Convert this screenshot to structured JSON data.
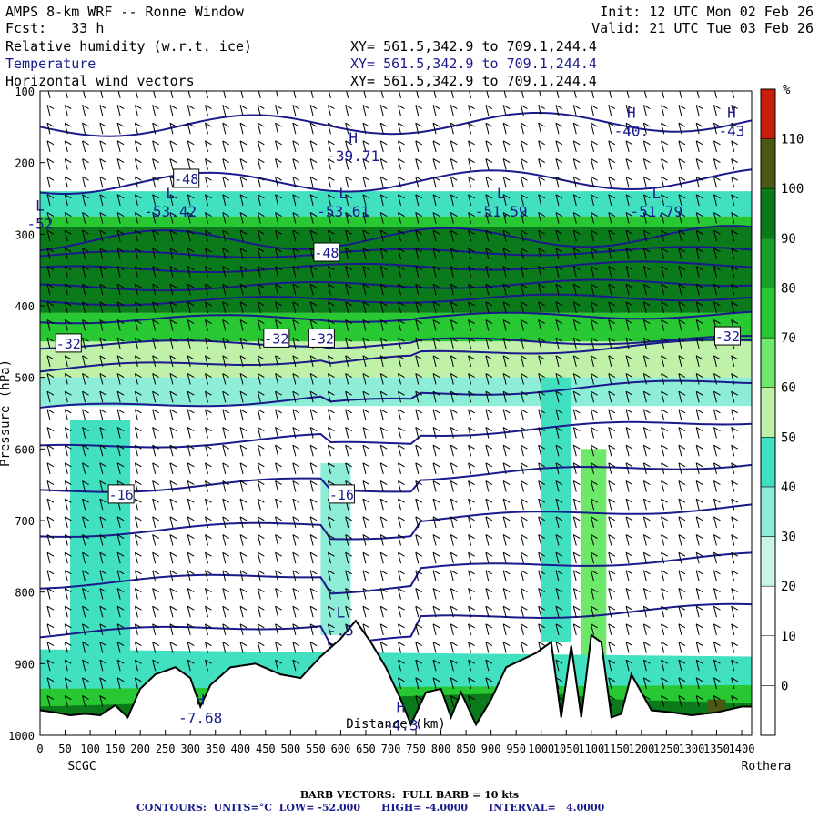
{
  "header": {
    "title": "AMPS 8-km WRF -- Ronne Window",
    "forecast": "Fcst:   33 h",
    "init": "Init: 12 UTC Mon 02 Feb 26",
    "valid": "Valid: 21 UTC Tue 03 Feb 26",
    "fields": [
      {
        "label": "Relative humidity (w.r.t. ice)",
        "xy": "XY= 561.5,342.9 to 709.1,244.4"
      },
      {
        "label": "Temperature",
        "xy": "XY= 561.5,342.9 to 709.1,244.4"
      },
      {
        "label": "Horizontal wind vectors",
        "xy": "XY= 561.5,342.9 to 709.1,244.4"
      }
    ]
  },
  "footer": {
    "barb_line": "BARB VECTORS:  FULL BARB = 10 kts",
    "contour_line": "CONTOURS:  UNITS=°C  LOW= -52.000      HIGH= -4.0000      INTERVAL=   4.0000"
  },
  "colors": {
    "temperature": "#1a1a8c",
    "humidity_scale": [
      "#ffffff",
      "#ffffff",
      "#ffffff",
      "#c8f5e6",
      "#8eedd6",
      "#40e0c0",
      "#bff2a8",
      "#6ee86a",
      "#27c832",
      "#16a028",
      "#0b7a1a",
      "#4a5a14",
      "#c81e0a"
    ]
  },
  "chart_data": {
    "type": "heatmap",
    "xlabel": "Distance (km)",
    "ylabel": "Pressure (hPa)",
    "x_ticks": [
      0,
      50,
      100,
      150,
      200,
      250,
      300,
      350,
      400,
      450,
      500,
      550,
      600,
      650,
      700,
      750,
      800,
      850,
      900,
      950,
      1000,
      1050,
      1100,
      1150,
      1200,
      1250,
      1300,
      1350,
      1400
    ],
    "y_ticks": [
      100,
      200,
      300,
      400,
      500,
      600,
      700,
      800,
      900,
      1000
    ],
    "xlim": [
      0,
      1420
    ],
    "ylim": [
      100,
      1000
    ],
    "left_endpoint": "SCGC",
    "right_endpoint": "Rothera",
    "colorbar": {
      "unit": "%",
      "ticks": [
        0,
        10,
        20,
        30,
        40,
        50,
        60,
        70,
        80,
        90,
        100,
        110
      ]
    },
    "rh_bands": [
      {
        "p_top": 240,
        "p_bot": 275,
        "rh": 40
      },
      {
        "p_top": 275,
        "p_bot": 290,
        "rh": 70
      },
      {
        "p_top": 290,
        "p_bot": 410,
        "rh": 90
      },
      {
        "p_top": 410,
        "p_bot": 450,
        "rh": 70
      },
      {
        "p_top": 450,
        "p_bot": 500,
        "rh": 50
      },
      {
        "p_top": 500,
        "p_bot": 540,
        "rh": 35
      }
    ],
    "temperature_labels": [
      {
        "text": "-48",
        "x": 290,
        "p": 222,
        "boxed": true
      },
      {
        "text": "-48",
        "x": 570,
        "p": 325,
        "boxed": true
      },
      {
        "text": "-32",
        "x": 55,
        "p": 452,
        "boxed": true
      },
      {
        "text": "-32",
        "x": 470,
        "p": 445,
        "boxed": true
      },
      {
        "text": "-32",
        "x": 560,
        "p": 445,
        "boxed": true
      },
      {
        "text": "-32",
        "x": 1370,
        "p": 442,
        "boxed": true
      },
      {
        "text": "-16",
        "x": 160,
        "p": 663,
        "boxed": true
      },
      {
        "text": "-16",
        "x": 600,
        "p": 663,
        "boxed": true
      }
    ],
    "extrema": [
      {
        "kind": "H",
        "value": "-39.71",
        "x": 625,
        "p": 185
      },
      {
        "kind": "H",
        "value": "-40.",
        "x": 1180,
        "p": 150
      },
      {
        "kind": "H",
        "value": "-43",
        "x": 1380,
        "p": 150
      },
      {
        "kind": "L",
        "value": "-53.42",
        "x": 260,
        "p": 263
      },
      {
        "kind": "L",
        "value": "-53.61",
        "x": 605,
        "p": 263
      },
      {
        "kind": "L",
        "value": "-51.59",
        "x": 920,
        "p": 263
      },
      {
        "kind": "L",
        "value": "-51.79",
        "x": 1230,
        "p": 263
      },
      {
        "kind": "L",
        "value": "-.5",
        "x": 600,
        "p": 848
      },
      {
        "kind": "H",
        "value": "-7.68",
        "x": 320,
        "p": 970
      },
      {
        "kind": "H",
        "value": "-4.3",
        "x": 720,
        "p": 980
      },
      {
        "kind": "L",
        "value": "-52",
        "x": 0,
        "p": 280
      }
    ]
  }
}
